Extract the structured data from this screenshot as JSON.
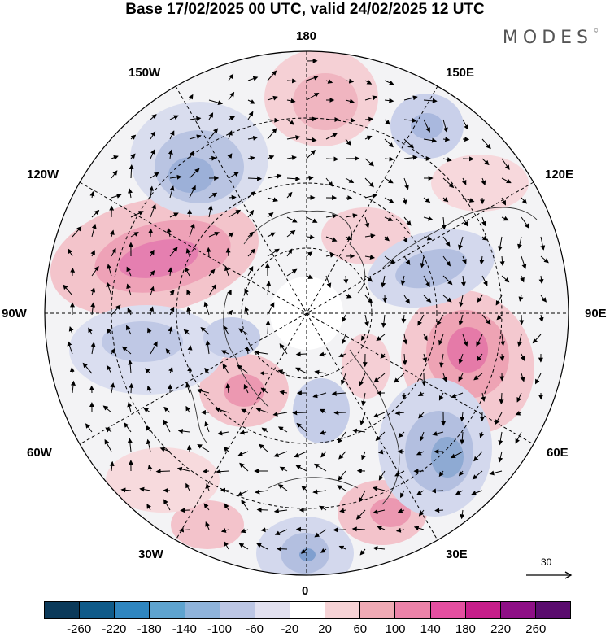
{
  "title": "Base 17/02/2025 00 UTC, valid 24/02/2025 12 UTC",
  "brand": "MODES",
  "brand_mark": "©",
  "longitude_labels": {
    "top": "180",
    "bottom": "0",
    "left": "90W",
    "right": "90E",
    "upper_left_1": "150W",
    "upper_left_2": "120W",
    "lower_left_1": "60W",
    "lower_left_2": "30W",
    "upper_right_1": "150E",
    "upper_right_2": "120E",
    "lower_right_1": "60E",
    "lower_right_2": "30E"
  },
  "reference_vector": "30",
  "colorbar": {
    "ticks": [
      "-260",
      "-220",
      "-180",
      "-140",
      "-100",
      "-60",
      "-20",
      "20",
      "60",
      "100",
      "140",
      "180",
      "220",
      "260"
    ],
    "colors": [
      "#0b3a5a",
      "#0f5b8a",
      "#2f86c0",
      "#5ea3cf",
      "#8fb3da",
      "#bcc6e4",
      "#e2e1f0",
      "#ffffff",
      "#f6d3d6",
      "#f0aab5",
      "#ec83a9",
      "#e44fa0",
      "#c61e8a",
      "#8e0f86",
      "#5a0c6e"
    ]
  }
}
